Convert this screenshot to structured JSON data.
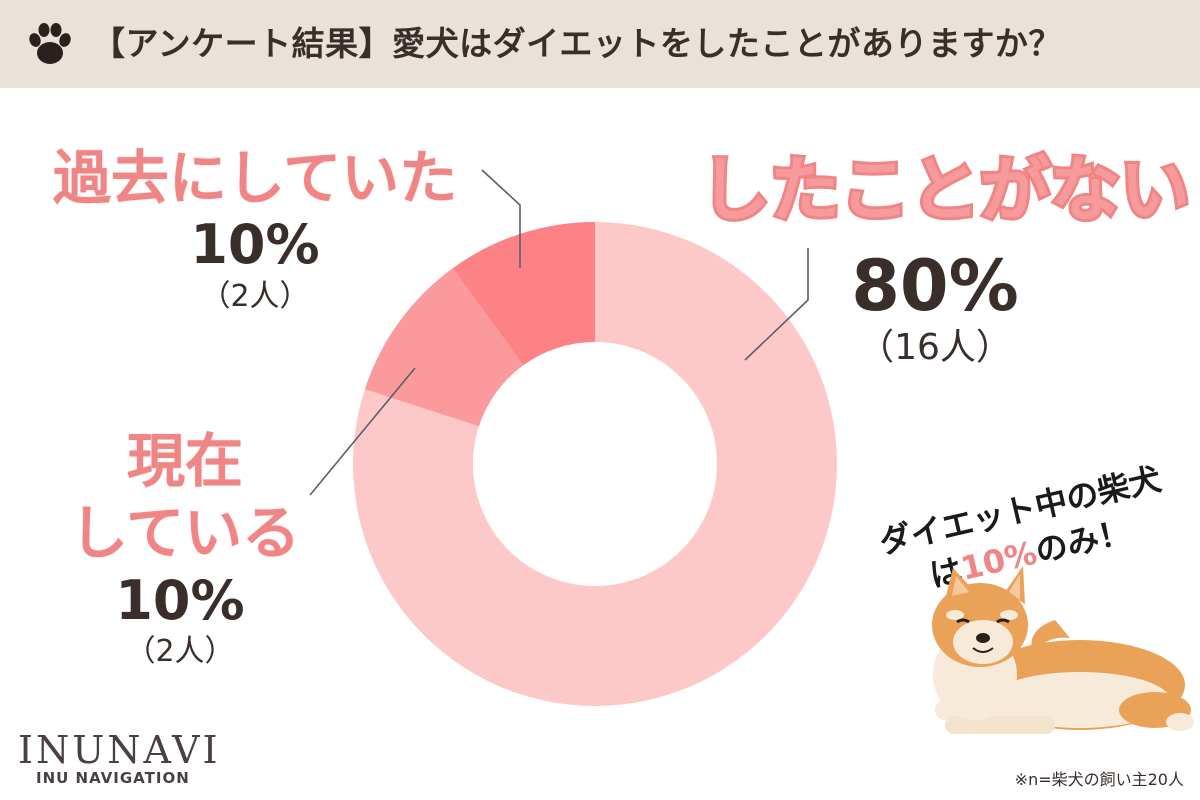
{
  "header": {
    "title": "【アンケート結果】愛犬はダイエットをしたことがありますか？"
  },
  "colors": {
    "header_bg": "#e9e2d8",
    "slice_never": "#fdc8c8",
    "slice_current": "#fb9a9d",
    "slice_past": "#fd8286",
    "label_pink": "#f08586",
    "text_dark": "#3a2e2b"
  },
  "labels": {
    "past": {
      "title": "過去にしていた",
      "pct": "10%",
      "count": "（2人）"
    },
    "never": {
      "title": "したことがない",
      "pct": "80%",
      "count": "（16人）"
    },
    "current": {
      "title1": "現在",
      "title2": "している",
      "pct": "10%",
      "count": "（2人）"
    }
  },
  "callout": {
    "line1": "ダイエット中の柴犬",
    "line2_pre": "は",
    "line2_hl": "10%",
    "line2_post": "のみ！"
  },
  "brand": {
    "logo": "INUNAVI",
    "sub": "INU NAVIGATION"
  },
  "footnote": "※n=柴犬の飼い主20人",
  "icons": [
    "paw-icon",
    "shiba-dog-illustration"
  ],
  "chart_data": {
    "type": "pie",
    "style": "donut",
    "slices": [
      {
        "label": "したことがない",
        "value": 80,
        "count": 16,
        "color": "#fdc8c8"
      },
      {
        "label": "現在している",
        "value": 10,
        "count": 2,
        "color": "#fb9a9d"
      },
      {
        "label": "過去にしていた",
        "value": 10,
        "count": 2,
        "color": "#fd8286"
      }
    ],
    "title": "【アンケート結果】愛犬はダイエットをしたことがありますか？",
    "legend": "none"
  }
}
